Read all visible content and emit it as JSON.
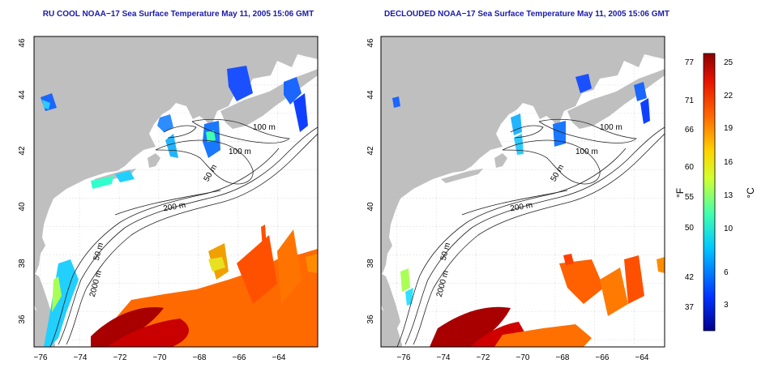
{
  "panels": [
    {
      "title": "RU COOL NOAA−17 Sea Surface Temperature May 11, 2005 15:06 GMT"
    },
    {
      "title": "DECLOUDED NOAA−17 Sea Surface Temperature May 11, 2005 15:06 GMT"
    }
  ],
  "axes": {
    "lat_ticks": [
      "46",
      "44",
      "42",
      "40",
      "38",
      "36"
    ],
    "lon_ticks": [
      "−76",
      "−74",
      "−72",
      "−70",
      "−68",
      "−66",
      "−64"
    ]
  },
  "contour_labels": {
    "m100": "100 m",
    "m50": "50 m",
    "m200": "200 m",
    "m2000": "2000 m"
  },
  "colorbar": {
    "unit_f": "°F",
    "unit_c": "°C",
    "f_ticks": [
      "77",
      "71",
      "66",
      "60",
      "55",
      "50",
      "42",
      "37"
    ],
    "c_ticks": [
      "25",
      "22",
      "19",
      "16",
      "13",
      "10",
      "6",
      "3"
    ]
  }
}
